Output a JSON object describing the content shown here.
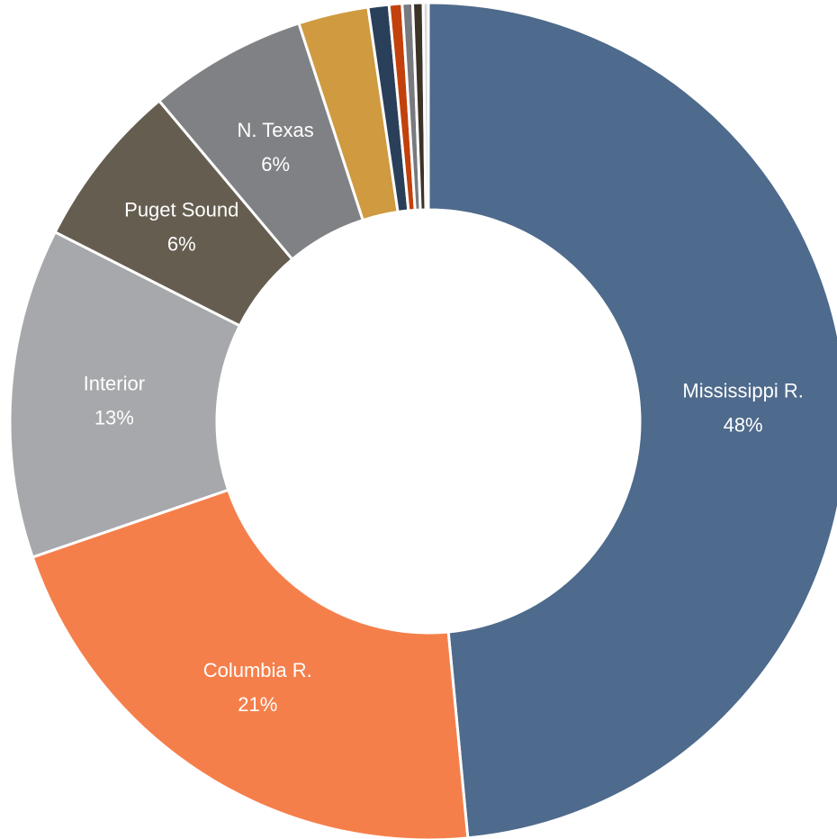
{
  "chart_data": {
    "type": "donut",
    "categories": [
      "Mississippi R.",
      "Columbia R.",
      "Interior",
      "Puget Sound",
      "N. Texas",
      null,
      null,
      null,
      null,
      null,
      null
    ],
    "values": [
      48.4,
      21.2,
      12.7,
      6.4,
      6.1,
      2.7,
      0.8,
      0.5,
      0.4,
      0.4,
      0.2
    ],
    "value_labels": [
      "48%",
      "21%",
      "13%",
      "6%",
      "6%",
      null,
      null,
      null,
      null,
      null,
      null
    ],
    "colors": [
      "#4e6a8c",
      "#f57f4b",
      "#a7a8ab",
      "#655e50",
      "#808184",
      "#cf9a40",
      "#2a3f59",
      "#c2410c",
      "#787a7f",
      "#3b3328",
      "#d9d9d9"
    ]
  }
}
